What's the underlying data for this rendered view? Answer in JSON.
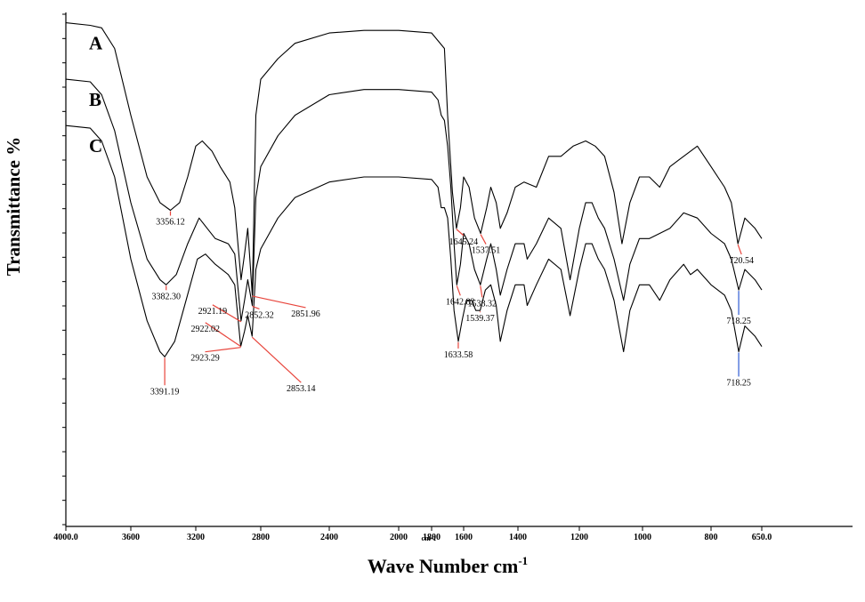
{
  "chart_data": {
    "type": "line",
    "xlabel": "Wave Number cm",
    "xlabel_sup": "-1",
    "x_unit_under_axis": "cm-1",
    "ylabel": "Transmittance %",
    "xlim": [
      4000,
      650
    ],
    "x_reversed": true,
    "x_ticks": [
      "4000.0",
      "3600",
      "3200",
      "2800",
      "2400",
      "2000",
      "1800",
      "1600",
      "1400",
      "1200",
      "1000",
      "800",
      "650.0"
    ],
    "grid": false,
    "series": [
      {
        "name": "A",
        "color": "#000000",
        "points": [
          [
            4000,
            98
          ],
          [
            3850,
            97.5
          ],
          [
            3780,
            97
          ],
          [
            3700,
            93
          ],
          [
            3600,
            80
          ],
          [
            3500,
            68
          ],
          [
            3420,
            63
          ],
          [
            3356.12,
            61.5
          ],
          [
            3300,
            63
          ],
          [
            3250,
            68
          ],
          [
            3200,
            74
          ],
          [
            3160,
            75
          ],
          [
            3100,
            73
          ],
          [
            3050,
            70
          ],
          [
            2990,
            67
          ],
          [
            2960,
            62
          ],
          [
            2921,
            48
          ],
          [
            2900,
            53
          ],
          [
            2880,
            58
          ],
          [
            2851.96,
            45
          ],
          [
            2830,
            80
          ],
          [
            2800,
            87
          ],
          [
            2700,
            91
          ],
          [
            2600,
            94
          ],
          [
            2400,
            96
          ],
          [
            2200,
            96.5
          ],
          [
            2000,
            96.5
          ],
          [
            1800,
            96
          ],
          [
            1720,
            93
          ],
          [
            1700,
            80
          ],
          [
            1670,
            65
          ],
          [
            1645.24,
            58
          ],
          [
            1620,
            62
          ],
          [
            1600,
            68
          ],
          [
            1580,
            66
          ],
          [
            1560,
            60
          ],
          [
            1537.51,
            57
          ],
          [
            1515,
            62
          ],
          [
            1500,
            66
          ],
          [
            1480,
            63
          ],
          [
            1465,
            58
          ],
          [
            1440,
            61
          ],
          [
            1410,
            66
          ],
          [
            1380,
            67
          ],
          [
            1340,
            66
          ],
          [
            1300,
            72
          ],
          [
            1260,
            72
          ],
          [
            1220,
            74
          ],
          [
            1180,
            75
          ],
          [
            1150,
            74
          ],
          [
            1120,
            72
          ],
          [
            1090,
            65
          ],
          [
            1065,
            55
          ],
          [
            1040,
            63
          ],
          [
            1010,
            68
          ],
          [
            980,
            68
          ],
          [
            950,
            66
          ],
          [
            920,
            70
          ],
          [
            880,
            72
          ],
          [
            840,
            74
          ],
          [
            800,
            70
          ],
          [
            760,
            66
          ],
          [
            740,
            63
          ],
          [
            720.54,
            55
          ],
          [
            700,
            60
          ],
          [
            670,
            58
          ],
          [
            650,
            56
          ]
        ]
      },
      {
        "name": "B",
        "color": "#000000",
        "points": [
          [
            4000,
            87
          ],
          [
            3850,
            86.5
          ],
          [
            3780,
            84
          ],
          [
            3700,
            77
          ],
          [
            3600,
            63
          ],
          [
            3500,
            52
          ],
          [
            3420,
            48
          ],
          [
            3382.3,
            47
          ],
          [
            3320,
            49
          ],
          [
            3250,
            55
          ],
          [
            3180,
            60
          ],
          [
            3130,
            58
          ],
          [
            3080,
            56
          ],
          [
            3000,
            55
          ],
          [
            2960,
            53
          ],
          [
            2921.19,
            40
          ],
          [
            2900,
            44
          ],
          [
            2880,
            48
          ],
          [
            2852.32,
            43
          ],
          [
            2830,
            64
          ],
          [
            2800,
            70
          ],
          [
            2700,
            76
          ],
          [
            2600,
            80
          ],
          [
            2400,
            84
          ],
          [
            2200,
            85
          ],
          [
            2000,
            85
          ],
          [
            1800,
            84.5
          ],
          [
            1760,
            83
          ],
          [
            1740,
            80
          ],
          [
            1720,
            79
          ],
          [
            1700,
            74
          ],
          [
            1680,
            66
          ],
          [
            1660,
            55
          ],
          [
            1642.82,
            47
          ],
          [
            1620,
            51
          ],
          [
            1600,
            57
          ],
          [
            1580,
            55
          ],
          [
            1560,
            50
          ],
          [
            1538.32,
            47
          ],
          [
            1515,
            52
          ],
          [
            1500,
            55
          ],
          [
            1480,
            50
          ],
          [
            1465,
            45
          ],
          [
            1440,
            50
          ],
          [
            1410,
            55
          ],
          [
            1380,
            55
          ],
          [
            1370,
            52
          ],
          [
            1340,
            55
          ],
          [
            1300,
            60
          ],
          [
            1260,
            58
          ],
          [
            1230,
            48
          ],
          [
            1200,
            58
          ],
          [
            1180,
            63
          ],
          [
            1160,
            63
          ],
          [
            1140,
            60
          ],
          [
            1120,
            58
          ],
          [
            1090,
            52
          ],
          [
            1060,
            44
          ],
          [
            1040,
            51
          ],
          [
            1010,
            56
          ],
          [
            980,
            56
          ],
          [
            950,
            57
          ],
          [
            920,
            58
          ],
          [
            880,
            61
          ],
          [
            840,
            60
          ],
          [
            800,
            57
          ],
          [
            760,
            55
          ],
          [
            740,
            52
          ],
          [
            718.25,
            46
          ],
          [
            700,
            50
          ],
          [
            670,
            48
          ],
          [
            650,
            46
          ]
        ]
      },
      {
        "name": "C",
        "color": "#000000",
        "points": [
          [
            4000,
            78
          ],
          [
            3850,
            77.5
          ],
          [
            3780,
            75
          ],
          [
            3700,
            68
          ],
          [
            3600,
            52
          ],
          [
            3500,
            40
          ],
          [
            3420,
            34
          ],
          [
            3391.19,
            33
          ],
          [
            3330,
            36
          ],
          [
            3260,
            44
          ],
          [
            3190,
            52
          ],
          [
            3140,
            53
          ],
          [
            3080,
            51
          ],
          [
            3000,
            49
          ],
          [
            2960,
            47
          ],
          [
            2923.29,
            35
          ],
          [
            2900,
            38
          ],
          [
            2880,
            41
          ],
          [
            2853.14,
            37
          ],
          [
            2830,
            50
          ],
          [
            2800,
            54
          ],
          [
            2700,
            60
          ],
          [
            2600,
            64
          ],
          [
            2400,
            67
          ],
          [
            2200,
            68
          ],
          [
            2000,
            68
          ],
          [
            1800,
            67.5
          ],
          [
            1760,
            66
          ],
          [
            1740,
            62
          ],
          [
            1720,
            62
          ],
          [
            1700,
            60
          ],
          [
            1680,
            52
          ],
          [
            1660,
            42
          ],
          [
            1633.58,
            36
          ],
          [
            1610,
            40
          ],
          [
            1590,
            44
          ],
          [
            1570,
            44
          ],
          [
            1555,
            42
          ],
          [
            1539.37,
            42
          ],
          [
            1520,
            46
          ],
          [
            1500,
            47
          ],
          [
            1480,
            43
          ],
          [
            1465,
            36
          ],
          [
            1440,
            42
          ],
          [
            1410,
            47
          ],
          [
            1380,
            47
          ],
          [
            1370,
            43
          ],
          [
            1340,
            47
          ],
          [
            1300,
            52
          ],
          [
            1260,
            50
          ],
          [
            1230,
            41
          ],
          [
            1200,
            50
          ],
          [
            1180,
            55
          ],
          [
            1160,
            55
          ],
          [
            1140,
            52
          ],
          [
            1120,
            50
          ],
          [
            1090,
            44
          ],
          [
            1060,
            34
          ],
          [
            1040,
            42
          ],
          [
            1010,
            47
          ],
          [
            980,
            47
          ],
          [
            950,
            44
          ],
          [
            920,
            48
          ],
          [
            880,
            51
          ],
          [
            860,
            49
          ],
          [
            840,
            50
          ],
          [
            800,
            47
          ],
          [
            760,
            45
          ],
          [
            740,
            42
          ],
          [
            718.25,
            34
          ],
          [
            700,
            39
          ],
          [
            670,
            37
          ],
          [
            650,
            35
          ]
        ]
      }
    ],
    "annotations": [
      {
        "series": "A",
        "text": "3356.12",
        "x": 3356.12,
        "line_color": "#e8453c"
      },
      {
        "series": "A",
        "text": "2851.96",
        "x": 2851.96,
        "line_color": "#e8453c"
      },
      {
        "series": "A",
        "text": "1645.24",
        "x": 1645.24,
        "line_color": "#e8453c"
      },
      {
        "series": "A",
        "text": "1537.51",
        "x": 1537.51,
        "line_color": "#e8453c"
      },
      {
        "series": "A",
        "text": "720.54",
        "x": 720.54,
        "line_color": "#e8453c"
      },
      {
        "series": "B",
        "text": "3382.30",
        "x": 3382.3,
        "line_color": "#e8453c"
      },
      {
        "series": "B",
        "text": "2921.19",
        "x": 2921.19,
        "line_color": "#e8453c"
      },
      {
        "series": "B",
        "text": "2852.32",
        "x": 2852.32,
        "line_color": "#e8453c"
      },
      {
        "series": "B",
        "text": "1642.82",
        "x": 1642.82,
        "line_color": "#e8453c"
      },
      {
        "series": "B",
        "text": "1538.32",
        "x": 1538.32,
        "line_color": "#e8453c"
      },
      {
        "series": "B",
        "text": "718.25",
        "x": 718.25,
        "line_color": "#2f5bd3"
      },
      {
        "series": "C",
        "text": "3391.19",
        "x": 3391.19,
        "line_color": "#e8453c"
      },
      {
        "series": "C",
        "text": "2922.02",
        "x": 2922.02,
        "line_color": "#e8453c"
      },
      {
        "series": "C",
        "text": "2923.29",
        "x": 2923.29,
        "line_color": "#e8453c"
      },
      {
        "series": "C",
        "text": "2853.14",
        "x": 2853.14,
        "line_color": "#e8453c"
      },
      {
        "series": "C",
        "text": "1633.58",
        "x": 1633.58,
        "line_color": "#e8453c"
      },
      {
        "series": "C",
        "text": "1539.37",
        "x": 1539.37,
        "line_color": "#e8453c"
      },
      {
        "series": "C",
        "text": "718.25",
        "x": 718.25,
        "line_color": "#2f5bd3"
      }
    ]
  }
}
